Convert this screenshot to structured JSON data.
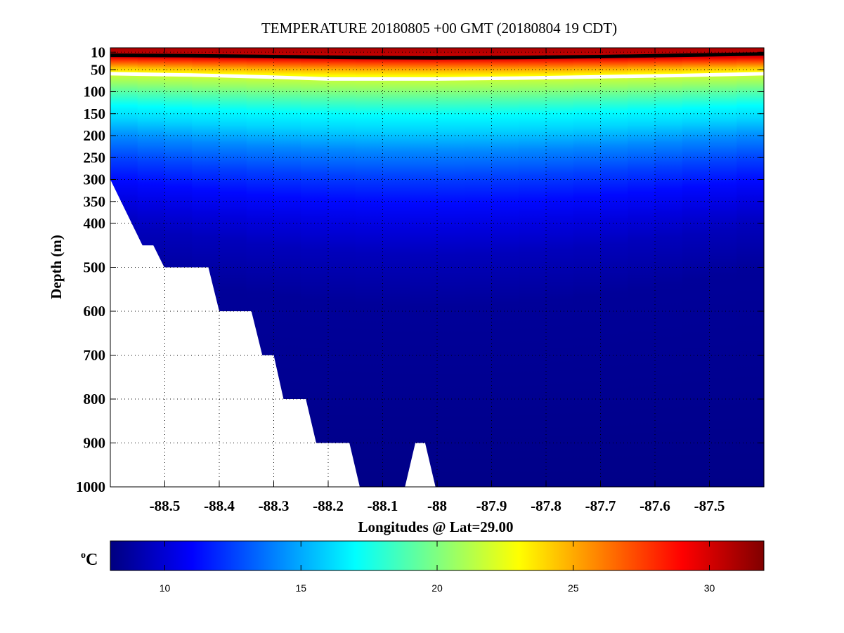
{
  "chart_data": {
    "type": "heatmap",
    "title": "TEMPERATURE 20180805 +00 GMT (20180804 19 CDT)",
    "xlabel": "Longitudes @ Lat=29.00",
    "ylabel": "Depth (m)",
    "xlim": [
      -88.6,
      -87.4
    ],
    "ylim": [
      0,
      1000
    ],
    "y_reversed": true,
    "grid": true,
    "xticks": [
      -88.5,
      -88.4,
      -88.3,
      -88.2,
      -88.1,
      -88,
      -87.9,
      -87.8,
      -87.7,
      -87.6,
      -87.5
    ],
    "xtick_labels": [
      "-88.5",
      "-88.4",
      "-88.3",
      "-88.2",
      "-88.1",
      "-88",
      "-87.9",
      "-87.8",
      "-87.7",
      "-87.6",
      "-87.5"
    ],
    "yticks": [
      10,
      50,
      100,
      150,
      200,
      250,
      300,
      350,
      400,
      500,
      600,
      700,
      800,
      900,
      1000
    ],
    "ytick_labels": [
      "10",
      "50",
      "100",
      "150",
      "200",
      "250",
      "300",
      "350",
      "400",
      "500",
      "600",
      "700",
      "800",
      "900",
      "1000"
    ],
    "temperature_profile": {
      "depth": [
        0,
        12,
        22,
        30,
        45,
        55,
        65,
        80,
        100,
        130,
        160,
        200,
        250,
        300,
        350,
        400,
        500,
        1000
      ],
      "temp": [
        31,
        30.5,
        29.5,
        27.5,
        24.5,
        23,
        21.5,
        20.5,
        19,
        17,
        16,
        14.2,
        12.5,
        11.2,
        10.2,
        9.4,
        8.6,
        8.2
      ]
    },
    "contours": [
      {
        "name": "upper-contour",
        "color": "#000000",
        "lon": [
          -88.6,
          -88.45,
          -88.3,
          -88.15,
          -88.0,
          -87.85,
          -87.7,
          -87.55,
          -87.4
        ],
        "depth": [
          17,
          18,
          20,
          22,
          23,
          22,
          20,
          17,
          14
        ]
      },
      {
        "name": "lower-contour",
        "color": "#ffffff",
        "lon": [
          -88.6,
          -88.45,
          -88.3,
          -88.2,
          -88.0,
          -87.85,
          -87.7,
          -87.55,
          -87.4
        ],
        "depth": [
          59,
          62,
          67,
          71,
          71,
          69,
          66,
          63,
          59
        ]
      }
    ],
    "seafloor": {
      "lon": [
        -88.6,
        -88.541,
        -88.521,
        -88.501,
        -88.42,
        -88.4,
        -88.341,
        -88.321,
        -88.3,
        -88.282,
        -88.241,
        -88.222,
        -88.161,
        -88.142
      ],
      "depth": [
        300,
        450,
        450,
        500,
        500,
        600,
        600,
        700,
        700,
        800,
        800,
        900,
        900,
        1000
      ]
    },
    "seamount": {
      "lon": [
        -88.059,
        -88.04,
        -88.022,
        -88.003
      ],
      "depth": [
        1000,
        900,
        900,
        1000
      ]
    },
    "colorbar": {
      "label_base": "o",
      "label_unit": "C",
      "range": [
        8,
        32
      ],
      "ticks": [
        10,
        15,
        20,
        25,
        30
      ],
      "tick_labels": [
        "10",
        "15",
        "20",
        "25",
        "30"
      ],
      "colormap": "jet"
    }
  }
}
